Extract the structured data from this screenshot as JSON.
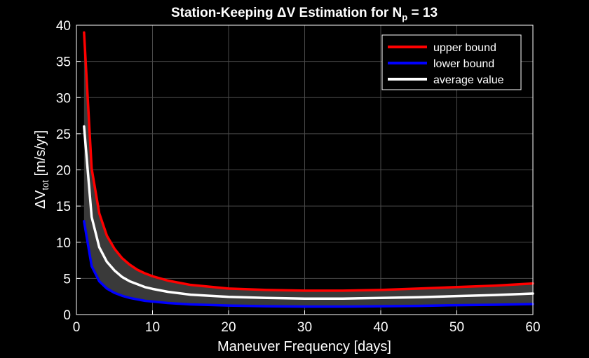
{
  "chart_data": {
    "type": "line",
    "title": {
      "prefix": "Station-Keeping ΔV Estimation for N",
      "sub": "p",
      "suffix": " = 13"
    },
    "xlabel": "Maneuver Frequency [days]",
    "ylabel": {
      "prefix": "ΔV",
      "sub": "tot",
      "suffix": "  [m/s/yr]"
    },
    "xlim": [
      0,
      60
    ],
    "ylim": [
      0,
      40
    ],
    "xticks": [
      "0",
      "10",
      "20",
      "30",
      "40",
      "50",
      "60"
    ],
    "yticks": [
      "0",
      "5",
      "10",
      "15",
      "20",
      "25",
      "30",
      "35",
      "40"
    ],
    "grid": true,
    "legend_position": "top-right",
    "band_fill": "#3a3a3a",
    "x": [
      1,
      2,
      3,
      4,
      5,
      6,
      7,
      8,
      9,
      10,
      12,
      15,
      20,
      25,
      30,
      35,
      40,
      45,
      50,
      55,
      60
    ],
    "series": [
      {
        "name": "upper bound",
        "color": "#ff0000",
        "values": [
          39.0,
          20.2,
          14.0,
          10.9,
          9.1,
          7.8,
          6.9,
          6.2,
          5.7,
          5.3,
          4.7,
          4.1,
          3.6,
          3.4,
          3.3,
          3.3,
          3.4,
          3.6,
          3.8,
          4.0,
          4.3
        ]
      },
      {
        "name": "lower bound",
        "color": "#0000ff",
        "values": [
          12.9,
          6.7,
          4.6,
          3.6,
          3.0,
          2.6,
          2.3,
          2.1,
          1.9,
          1.8,
          1.6,
          1.4,
          1.25,
          1.15,
          1.1,
          1.1,
          1.15,
          1.2,
          1.3,
          1.35,
          1.45
        ]
      },
      {
        "name": "average value",
        "color": "#ffffff",
        "values": [
          26.0,
          13.5,
          9.3,
          7.3,
          6.1,
          5.2,
          4.6,
          4.2,
          3.8,
          3.55,
          3.15,
          2.75,
          2.45,
          2.3,
          2.2,
          2.2,
          2.3,
          2.4,
          2.55,
          2.7,
          2.9
        ]
      }
    ]
  }
}
